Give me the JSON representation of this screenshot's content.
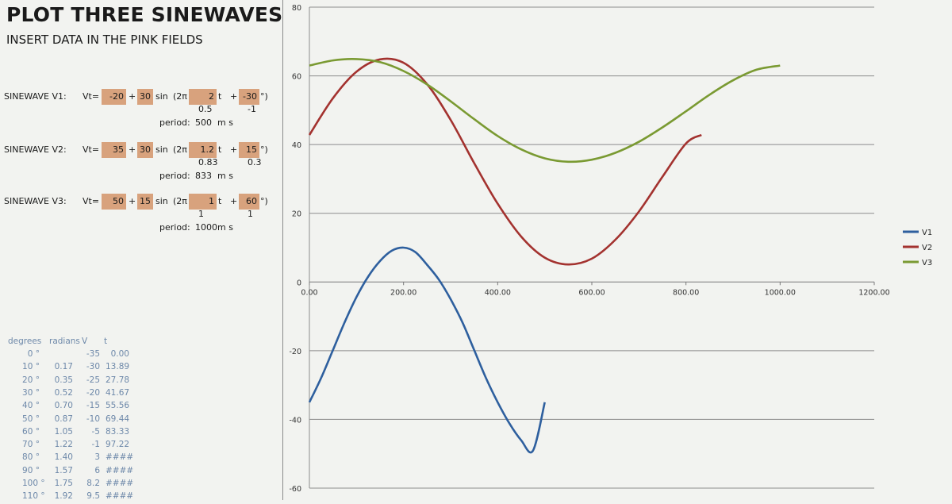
{
  "header": {
    "title": "PLOT THREE SINEWAVES",
    "subtitle": "INSERT DATA IN THE PINK FIELDS"
  },
  "equations": [
    {
      "label": "SINEWAVE V1:",
      "vt": "Vt=",
      "offset": "-20",
      "plus1": "+",
      "amplitude": "30",
      "sin": "sin",
      "twopi": "(2π",
      "freq": "2",
      "t": "t",
      "plus2": "+",
      "phase": "-30",
      "close": "°)",
      "sub_freq": "0.5",
      "sub_phase": "-1",
      "period_label": "period:",
      "period_value": "500",
      "period_unit": "m s"
    },
    {
      "label": "SINEWAVE V2:",
      "vt": "Vt=",
      "offset": "35",
      "plus1": "+",
      "amplitude": "30",
      "sin": "sin",
      "twopi": "(2π",
      "freq": "1.2",
      "t": "t",
      "plus2": "+",
      "phase": "15",
      "close": "°)",
      "sub_freq": "0.83",
      "sub_phase": "0.3",
      "period_label": "period:",
      "period_value": "833",
      "period_unit": "m s"
    },
    {
      "label": "SINEWAVE V3:",
      "vt": "Vt=",
      "offset": "50",
      "plus1": "+",
      "amplitude": "15",
      "sin": "sin",
      "twopi": "(2π",
      "freq": "1",
      "t": "t",
      "plus2": "+",
      "phase": "60",
      "close": "°)",
      "sub_freq": "1",
      "sub_phase": "1",
      "period_label": "period:",
      "period_value": "1000",
      "period_unit": "m s"
    }
  ],
  "table": {
    "headers": [
      "degrees",
      "radians",
      "V",
      "t"
    ],
    "rows": [
      [
        "0 °",
        "",
        "-35",
        "0.00"
      ],
      [
        "10 °",
        "0.17",
        "-30",
        "13.89"
      ],
      [
        "20 °",
        "0.35",
        "-25",
        "27.78"
      ],
      [
        "30 °",
        "0.52",
        "-20",
        "41.67"
      ],
      [
        "40 °",
        "0.70",
        "-15",
        "55.56"
      ],
      [
        "50 °",
        "0.87",
        "-10",
        "69.44"
      ],
      [
        "60 °",
        "1.05",
        "-5",
        "83.33"
      ],
      [
        "70 °",
        "1.22",
        "-1",
        "97.22"
      ],
      [
        "80 °",
        "1.40",
        "3",
        "####"
      ],
      [
        "90 °",
        "1.57",
        "6",
        "####"
      ],
      [
        "100 °",
        "1.75",
        "8.2",
        "####"
      ],
      [
        "110 °",
        "1.92",
        "9.5",
        "####"
      ]
    ]
  },
  "chart_data": {
    "type": "line",
    "title": "",
    "xlabel": "",
    "ylabel": "",
    "xlim": [
      0,
      1200
    ],
    "ylim": [
      -60,
      80
    ],
    "x_ticks": [
      "0.00",
      "200.00",
      "400.00",
      "600.00",
      "800.00",
      "1000.00",
      "1200.00"
    ],
    "y_ticks": [
      "-60",
      "-40",
      "-20",
      "0",
      "20",
      "40",
      "60",
      "80"
    ],
    "grid": "horizontal",
    "legend": "right",
    "series": [
      {
        "name": "V1",
        "color": "#2e5f9e",
        "x": [
          0,
          25,
          50,
          75,
          100,
          125,
          150,
          175,
          200,
          225,
          250,
          275,
          300,
          325,
          350,
          375,
          400,
          425,
          450,
          475,
          500
        ],
        "values": [
          -35,
          -27.9,
          -19.8,
          -11.7,
          -4.4,
          1.6,
          6.1,
          9.1,
          10,
          8.7,
          5,
          0.7,
          -5,
          -11.7,
          -19.8,
          -27.9,
          -35,
          -41.2,
          -46.1,
          -49.1,
          -35
        ]
      },
      {
        "name": "V2",
        "color": "#a3322f",
        "x": [
          0,
          50,
          100,
          150,
          200,
          250,
          300,
          350,
          400,
          450,
          500,
          550,
          600,
          650,
          700,
          750,
          800,
          833
        ],
        "values": [
          42.8,
          53.5,
          61.2,
          64.8,
          63.8,
          57.6,
          47.2,
          34.6,
          22.8,
          13.2,
          7.1,
          5.1,
          6.8,
          12.3,
          20.5,
          30.6,
          40.3,
          42.8
        ]
      },
      {
        "name": "V3",
        "color": "#7a9a32",
        "x": [
          0,
          50,
          100,
          150,
          200,
          250,
          300,
          350,
          400,
          450,
          500,
          550,
          600,
          650,
          700,
          750,
          800,
          850,
          900,
          950,
          1000
        ],
        "values": [
          63,
          64.5,
          64.9,
          64,
          61.4,
          57.5,
          52.6,
          47.4,
          42.5,
          38.6,
          36,
          35,
          35.6,
          37.6,
          40.8,
          45,
          49.7,
          54.5,
          58.7,
          61.8,
          63
        ]
      }
    ]
  }
}
